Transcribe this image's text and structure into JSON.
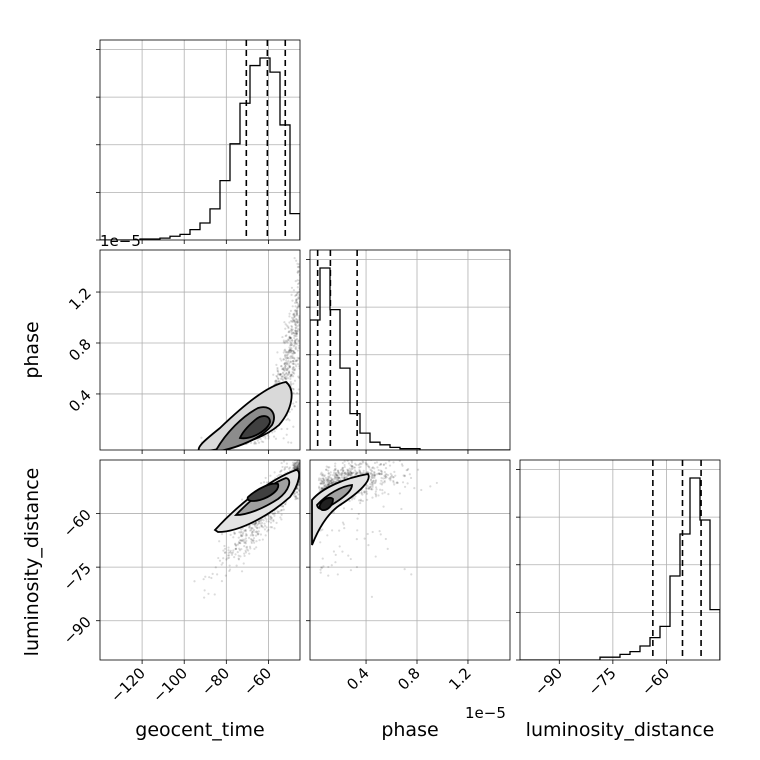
{
  "chart_data": {
    "type": "corner",
    "parameters": [
      "geocent_time",
      "phase",
      "luminosity_distance"
    ],
    "axes": {
      "geocent_time": {
        "label": "geocent_time",
        "range": [
          -140,
          -45
        ],
        "ticks": [
          -120,
          -100,
          -80,
          -60
        ],
        "tick_labels": [
          "−120",
          "−100",
          "−80",
          "−60"
        ]
      },
      "phase": {
        "label": "phase",
        "range": [
          -0.04,
          1.53
        ],
        "ticks": [
          0.4,
          0.8,
          1.2
        ],
        "tick_labels": [
          "0.4",
          "0.8",
          "1.2"
        ],
        "offset_text": "1e−5"
      },
      "luminosity_distance": {
        "label": "luminosity_distance",
        "range": [
          -101,
          -45
        ],
        "ticks": [
          -90,
          -75,
          -60
        ],
        "tick_labels": [
          "−90",
          "−75",
          "−60"
        ]
      }
    },
    "histograms": [
      {
        "parameter": "geocent_time",
        "bin_edges": [
          -140,
          -135.25,
          -130.5,
          -125.75,
          -121,
          -116.25,
          -111.5,
          -106.75,
          -102,
          -97.25,
          -92.5,
          -87.75,
          -83,
          -78.25,
          -73.5,
          -68.75,
          -64,
          -59.25,
          -54.5,
          -49.75,
          -45
        ],
        "counts": [
          0,
          0,
          0,
          0,
          1,
          1,
          2,
          4,
          6,
          11,
          18,
          33,
          63,
          102,
          145,
          185,
          193,
          178,
          122,
          28
        ],
        "quantiles": [
          -70.5,
          -60.5,
          -52.0
        ]
      },
      {
        "parameter": "phase",
        "bin_edges": [
          -0.04,
          0.0385,
          0.117,
          0.1955,
          0.274,
          0.3525,
          0.431,
          0.5095,
          0.588,
          0.6665,
          0.745,
          0.8235,
          0.902,
          0.9805,
          1.059,
          1.1375,
          1.216,
          1.2945,
          1.373,
          1.4515,
          1.53
        ],
        "counts": [
          100,
          140,
          108,
          63,
          28,
          13,
          6,
          4,
          2,
          1,
          1,
          0,
          0,
          0,
          0,
          0,
          0,
          0,
          0,
          0
        ],
        "quantiles": [
          0.02,
          0.12,
          0.33
        ]
      },
      {
        "parameter": "luminosity_distance",
        "bin_edges": [
          -101,
          -98.2,
          -95.4,
          -92.6,
          -89.8,
          -87,
          -84.2,
          -81.4,
          -78.6,
          -75.8,
          -73,
          -70.2,
          -67.4,
          -64.6,
          -61.8,
          -59,
          -56.2,
          -53.4,
          -50.6,
          -47.8,
          -45
        ],
        "counts": [
          0,
          0,
          0,
          0,
          0,
          0,
          0,
          0,
          1,
          1,
          2,
          3,
          5,
          8,
          12,
          30,
          45,
          65,
          50,
          18
        ],
        "quantiles": [
          -63.8,
          -55.5,
          -50.3
        ]
      }
    ],
    "contours": [
      {
        "x": "geocent_time",
        "y": "phase",
        "peak": [
          -64,
          0.13
        ],
        "levels": [
          0.39,
          0.86,
          0.99
        ],
        "x_quantiles": [
          -70.5,
          -60.5,
          -52.0
        ],
        "y_quantiles": [
          0.02,
          0.12,
          0.33
        ]
      },
      {
        "x": "geocent_time",
        "y": "luminosity_distance",
        "peak": [
          -60,
          -58
        ],
        "levels": [
          0.39,
          0.86,
          0.99
        ],
        "x_quantiles": [
          -70.5,
          -60.5,
          -52.0
        ],
        "y_quantiles": [
          -63.8,
          -55.5,
          -50.3
        ]
      },
      {
        "x": "phase",
        "y": "luminosity_distance",
        "peak": [
          0.05,
          -58
        ],
        "levels": [
          0.39,
          0.86,
          0.99
        ],
        "x_quantiles": [
          0.02,
          0.12,
          0.33
        ],
        "y_quantiles": [
          -63.8,
          -55.5,
          -50.3
        ]
      }
    ],
    "grid": true
  }
}
